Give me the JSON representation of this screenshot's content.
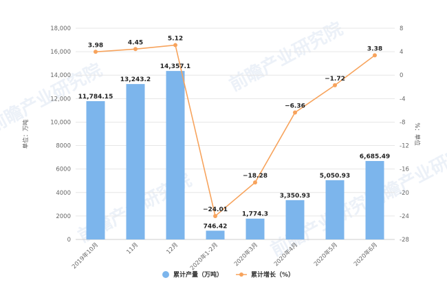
{
  "chart_data": {
    "type": "bar",
    "categories": [
      "2019年10月",
      "11月",
      "12月",
      "2020年1-2月",
      "2020年3月",
      "2020年4月",
      "2020年5月",
      "2020年6月"
    ],
    "series": [
      {
        "name": "累计产量（万吨）",
        "type": "bar",
        "axis": "left",
        "color": "#7cb5ec",
        "values": [
          11784.15,
          13243.2,
          14357.1,
          746.42,
          1774.3,
          3350.93,
          5050.93,
          6685.49
        ],
        "labels": [
          "11,784.15",
          "13,243.2",
          "14,357.1",
          "746.42",
          "1,774.3",
          "3,350.93",
          "5,050.93",
          "6,685.49"
        ]
      },
      {
        "name": "累计增长（%）",
        "type": "line",
        "axis": "right",
        "color": "#f7a35c",
        "values": [
          3.98,
          4.45,
          5.12,
          -24.01,
          -18.28,
          -6.36,
          -1.72,
          3.38
        ],
        "labels": [
          "3.98",
          "4.45",
          "5.12",
          "−24.01",
          "−18.28",
          "−6.36",
          "−1.72",
          "3.38"
        ]
      }
    ],
    "ylabel": "单位：万吨",
    "y2label": "%：单位",
    "ylim": [
      0,
      18000
    ],
    "yticks": [
      "0",
      "2000",
      "4000",
      "6000",
      "8000",
      "10,000",
      "12,000",
      "14,000",
      "16,000",
      "18,000"
    ],
    "y2lim": [
      -28,
      8
    ],
    "y2ticks": [
      "-28",
      "-24",
      "-20",
      "-16",
      "-12",
      "-8",
      "-4",
      "0",
      "4",
      "8"
    ],
    "grid": true,
    "legend": "bottom-center",
    "watermark": "前瞻产业研究院"
  }
}
